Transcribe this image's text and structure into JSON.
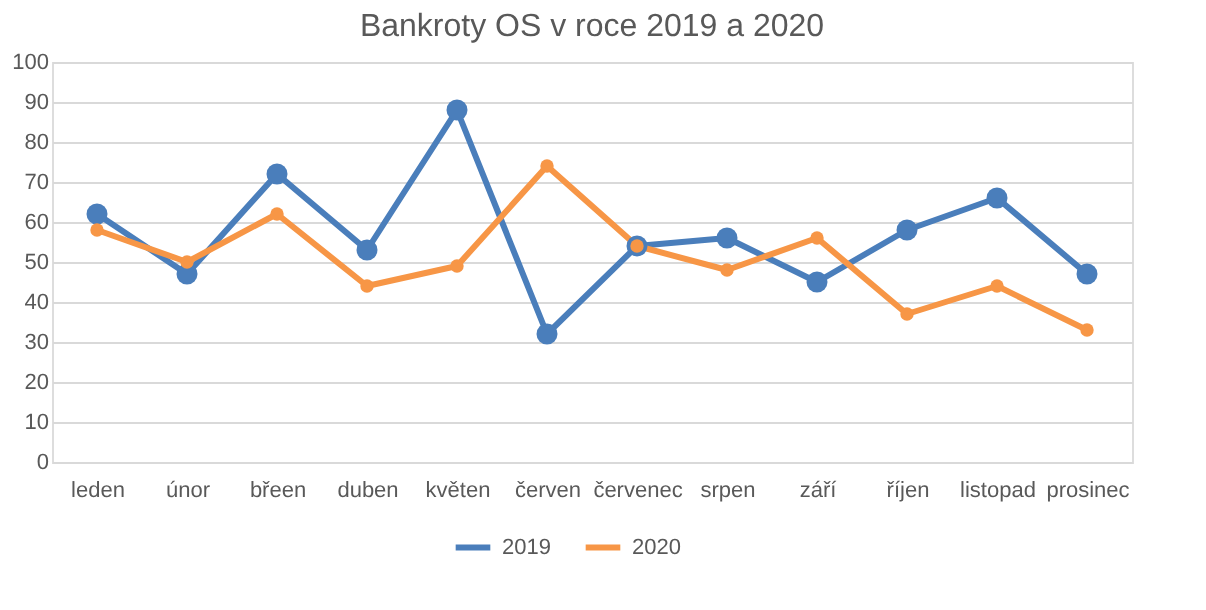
{
  "chart_data": {
    "type": "line",
    "title": "Bankroty OS v roce 2019 a 2020",
    "categories": [
      "leden",
      "únor",
      "břeen",
      "duben",
      "květen",
      "červen",
      "červenec",
      "srpen",
      "září",
      "říjen",
      "listopad",
      "prosinec"
    ],
    "series": [
      {
        "name": "2019",
        "color": "#4a7ebb",
        "values": [
          62,
          47,
          72,
          53,
          88,
          32,
          54,
          56,
          45,
          58,
          66,
          47
        ]
      },
      {
        "name": "2020",
        "color": "#f79646",
        "values": [
          58,
          50,
          62,
          44,
          49,
          74,
          54,
          48,
          56,
          37,
          44,
          33
        ]
      }
    ],
    "ylim": [
      0,
      100
    ],
    "yticks": [
      0,
      10,
      20,
      30,
      40,
      50,
      60,
      70,
      80,
      90,
      100
    ],
    "grid": "y",
    "legend": "bottom",
    "marker": "circle",
    "line_style": "solid"
  }
}
